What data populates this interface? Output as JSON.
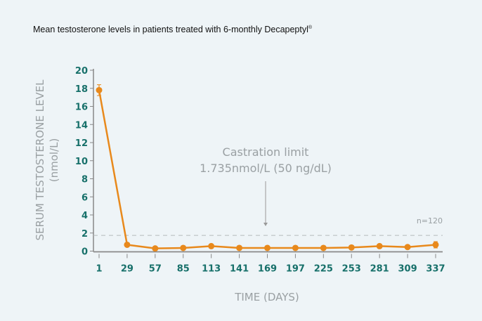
{
  "chart_data": {
    "type": "line",
    "title": "Mean testosterone levels in patients treated with 6-monthly Decapeptyl",
    "title_mark": "®",
    "xlabel": "TIME (DAYS)",
    "ylabel": "SERUM TESTOSTERONE LEVEL",
    "ylabel_unit": "(nmol/L)",
    "ylim": [
      0,
      20
    ],
    "yticks": [
      "0",
      "2",
      "4",
      "6",
      "8",
      "10",
      "12",
      "14",
      "16",
      "18",
      "20"
    ],
    "x": [
      1,
      29,
      57,
      85,
      113,
      141,
      169,
      197,
      225,
      253,
      281,
      309,
      337
    ],
    "series": [
      {
        "name": "Mean testosterone",
        "color": "#e8891c",
        "values": [
          17.8,
          0.7,
          0.3,
          0.35,
          0.55,
          0.35,
          0.35,
          0.35,
          0.35,
          0.4,
          0.55,
          0.45,
          0.7
        ],
        "error": [
          0.6,
          0,
          0,
          0,
          0,
          0,
          0,
          0,
          0,
          0,
          0,
          0,
          0.35
        ]
      }
    ],
    "reference_line": {
      "value": 1.735,
      "label_line1": "Castration limit",
      "label_line2": "1.735nmol/L (50 ng/dL)"
    },
    "annotation": "n=120",
    "grid": false
  }
}
